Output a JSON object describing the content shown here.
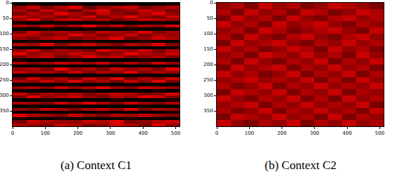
{
  "chart_data": [
    {
      "type": "heatmap",
      "title": "(a) Context C1",
      "color": "#e00000",
      "zlim": [
        0,
        9
      ],
      "xlim": [
        0,
        512
      ],
      "ylim": [
        400,
        0
      ],
      "xticks": [
        0,
        100,
        200,
        300,
        400,
        500
      ],
      "yticks": [
        0,
        50,
        100,
        150,
        200,
        250,
        300,
        350
      ],
      "x": [
        0,
        43,
        85,
        128,
        171,
        213,
        256,
        299,
        341,
        384,
        427,
        469,
        512
      ],
      "y": [
        0,
        10,
        20,
        30,
        40,
        50,
        60,
        70,
        80,
        90,
        100,
        110,
        120,
        130,
        140,
        150,
        160,
        170,
        180,
        190,
        200,
        210,
        220,
        230,
        240,
        250,
        260,
        270,
        280,
        290,
        300,
        310,
        320,
        330,
        340,
        350,
        360,
        370,
        380,
        390,
        400
      ],
      "cells": [
        [
          0,
          1,
          0,
          0,
          1,
          0,
          0,
          0,
          1,
          0,
          0,
          1
        ],
        [
          6,
          8,
          5,
          7,
          9,
          4,
          6,
          7,
          8,
          5,
          6,
          7
        ],
        [
          7,
          5,
          8,
          6,
          4,
          7,
          9,
          5,
          6,
          8,
          7,
          5
        ],
        [
          5,
          7,
          6,
          9,
          7,
          5,
          8,
          6,
          5,
          7,
          9,
          6
        ],
        [
          8,
          6,
          7,
          5,
          6,
          8,
          5,
          7,
          9,
          6,
          5,
          8
        ],
        [
          6,
          9,
          5,
          7,
          8,
          6,
          7,
          5,
          6,
          8,
          7,
          6
        ],
        [
          1,
          0,
          0,
          1,
          0,
          0,
          1,
          0,
          0,
          0,
          1,
          0
        ],
        [
          7,
          6,
          8,
          5,
          7,
          9,
          6,
          8,
          5,
          7,
          6,
          9
        ],
        [
          0,
          0,
          1,
          0,
          0,
          1,
          0,
          0,
          1,
          0,
          0,
          0
        ],
        [
          5,
          8,
          6,
          7,
          6,
          5,
          8,
          7,
          6,
          9,
          5,
          7
        ],
        [
          8,
          7,
          5,
          6,
          9,
          7,
          5,
          6,
          8,
          5,
          7,
          6
        ],
        [
          6,
          5,
          7,
          8,
          5,
          6,
          7,
          9,
          5,
          6,
          8,
          7
        ],
        [
          0,
          1,
          0,
          0,
          0,
          1,
          0,
          0,
          0,
          1,
          0,
          0
        ],
        [
          7,
          6,
          9,
          5,
          7,
          8,
          6,
          5,
          7,
          6,
          9,
          5
        ],
        [
          0,
          0,
          0,
          1,
          0,
          0,
          0,
          1,
          0,
          0,
          0,
          1
        ],
        [
          6,
          8,
          5,
          7,
          6,
          5,
          9,
          7,
          6,
          8,
          5,
          7
        ],
        [
          9,
          6,
          7,
          6,
          8,
          7,
          5,
          6,
          9,
          7,
          6,
          8
        ],
        [
          5,
          7,
          8,
          5,
          6,
          9,
          7,
          8,
          5,
          6,
          7,
          5
        ],
        [
          1,
          0,
          0,
          0,
          1,
          0,
          0,
          0,
          0,
          1,
          0,
          0
        ],
        [
          7,
          5,
          6,
          8,
          7,
          6,
          8,
          5,
          7,
          5,
          8,
          6
        ],
        [
          0,
          0,
          1,
          0,
          0,
          0,
          1,
          0,
          0,
          0,
          0,
          1
        ],
        [
          6,
          7,
          5,
          9,
          6,
          7,
          5,
          8,
          6,
          7,
          5,
          9
        ],
        [
          8,
          6,
          7,
          5,
          8,
          5,
          7,
          6,
          9,
          5,
          7,
          6
        ],
        [
          0,
          1,
          0,
          0,
          0,
          0,
          1,
          0,
          0,
          1,
          0,
          0
        ],
        [
          5,
          8,
          6,
          7,
          5,
          8,
          6,
          9,
          5,
          7,
          6,
          8
        ],
        [
          7,
          6,
          8,
          6,
          9,
          6,
          7,
          5,
          8,
          6,
          9,
          5
        ],
        [
          0,
          0,
          0,
          1,
          0,
          0,
          0,
          0,
          1,
          0,
          0,
          0
        ],
        [
          6,
          7,
          5,
          8,
          6,
          7,
          9,
          6,
          5,
          8,
          7,
          6
        ],
        [
          1,
          0,
          0,
          0,
          0,
          1,
          0,
          0,
          0,
          0,
          1,
          0
        ],
        [
          8,
          5,
          7,
          6,
          7,
          5,
          6,
          8,
          7,
          5,
          6,
          9
        ],
        [
          5,
          9,
          6,
          7,
          8,
          6,
          5,
          7,
          6,
          9,
          8,
          5
        ],
        [
          0,
          0,
          1,
          0,
          0,
          0,
          0,
          1,
          0,
          0,
          0,
          1
        ],
        [
          7,
          6,
          5,
          8,
          6,
          9,
          7,
          5,
          8,
          6,
          5,
          7
        ],
        [
          0,
          1,
          0,
          0,
          1,
          0,
          0,
          0,
          0,
          1,
          0,
          0
        ],
        [
          6,
          5,
          8,
          7,
          5,
          7,
          8,
          6,
          9,
          5,
          7,
          6
        ],
        [
          0,
          0,
          0,
          0,
          1,
          0,
          1,
          0,
          0,
          0,
          0,
          1
        ],
        [
          9,
          7,
          6,
          5,
          8,
          6,
          5,
          7,
          6,
          8,
          6,
          5
        ],
        [
          1,
          0,
          0,
          1,
          0,
          0,
          0,
          0,
          1,
          0,
          0,
          0
        ],
        [
          5,
          8,
          7,
          6,
          6,
          8,
          7,
          9,
          5,
          6,
          7,
          8
        ],
        [
          7,
          6,
          5,
          8,
          7,
          5,
          6,
          8,
          7,
          5,
          9,
          6
        ]
      ]
    },
    {
      "type": "heatmap",
      "title": "(b) Context C2",
      "color": "#e00000",
      "zlim": [
        0,
        9
      ],
      "xlim": [
        0,
        512
      ],
      "ylim": [
        400,
        0
      ],
      "xticks": [
        0,
        100,
        200,
        300,
        400,
        500
      ],
      "yticks": [
        0,
        50,
        100,
        150,
        200,
        250,
        300,
        350
      ],
      "x": [
        0,
        43,
        85,
        128,
        171,
        213,
        256,
        299,
        341,
        384,
        427,
        469,
        512
      ],
      "y": [
        0,
        20,
        40,
        60,
        80,
        100,
        120,
        140,
        160,
        180,
        200,
        220,
        240,
        260,
        280,
        300,
        320,
        340,
        360,
        380,
        400
      ],
      "cells": [
        [
          6,
          7,
          5,
          8,
          6,
          7,
          5,
          6,
          8,
          7,
          6,
          5
        ],
        [
          7,
          5,
          8,
          6,
          7,
          5,
          8,
          7,
          5,
          6,
          8,
          7
        ],
        [
          5,
          8,
          6,
          7,
          5,
          8,
          6,
          5,
          7,
          8,
          6,
          7
        ],
        [
          8,
          6,
          7,
          5,
          8,
          6,
          7,
          8,
          6,
          5,
          7,
          6
        ],
        [
          6,
          7,
          5,
          8,
          7,
          5,
          6,
          7,
          8,
          6,
          5,
          8
        ],
        [
          7,
          5,
          8,
          6,
          5,
          7,
          8,
          6,
          5,
          7,
          8,
          6
        ],
        [
          5,
          8,
          6,
          7,
          8,
          6,
          5,
          7,
          6,
          8,
          6,
          7
        ],
        [
          8,
          6,
          7,
          5,
          6,
          8,
          7,
          5,
          8,
          6,
          7,
          5
        ],
        [
          6,
          7,
          5,
          8,
          7,
          6,
          8,
          6,
          7,
          5,
          8,
          6
        ],
        [
          7,
          5,
          8,
          6,
          5,
          7,
          6,
          8,
          5,
          7,
          6,
          8
        ],
        [
          5,
          8,
          6,
          7,
          8,
          5,
          7,
          6,
          8,
          6,
          7,
          5
        ],
        [
          8,
          6,
          7,
          5,
          6,
          8,
          5,
          7,
          6,
          8,
          5,
          7
        ],
        [
          6,
          7,
          8,
          6,
          7,
          6,
          8,
          5,
          7,
          5,
          8,
          6
        ],
        [
          7,
          5,
          6,
          8,
          5,
          7,
          6,
          8,
          6,
          7,
          6,
          8
        ],
        [
          5,
          8,
          7,
          6,
          8,
          5,
          7,
          6,
          8,
          5,
          7,
          6
        ],
        [
          8,
          6,
          5,
          7,
          6,
          8,
          5,
          7,
          5,
          8,
          6,
          7
        ],
        [
          6,
          7,
          8,
          5,
          7,
          6,
          8,
          6,
          7,
          6,
          8,
          5
        ],
        [
          7,
          5,
          6,
          8,
          5,
          7,
          6,
          8,
          6,
          7,
          5,
          8
        ],
        [
          5,
          8,
          7,
          6,
          8,
          6,
          7,
          5,
          8,
          5,
          7,
          6
        ],
        [
          8,
          6,
          5,
          7,
          6,
          8,
          5,
          7,
          6,
          8,
          6,
          7
        ]
      ]
    }
  ]
}
